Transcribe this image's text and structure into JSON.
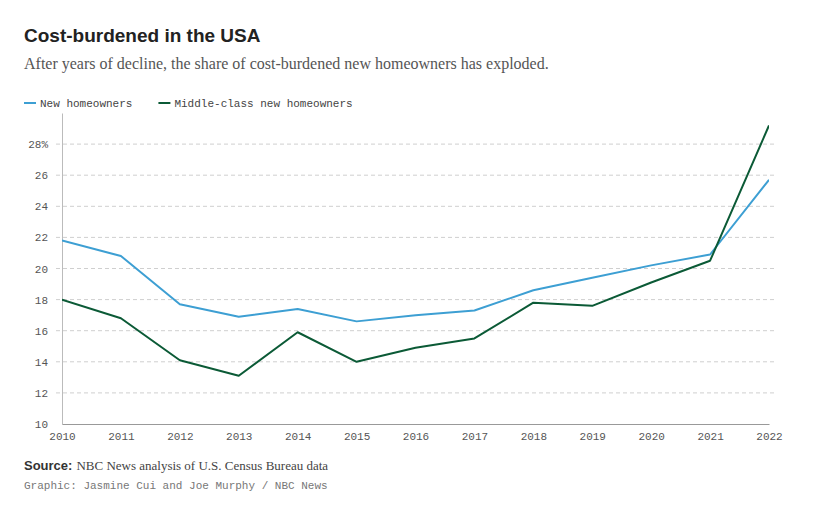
{
  "chart_data": {
    "type": "line",
    "title": "Cost-burdened in the USA",
    "subtitle": "After years of decline, the share of cost-burdened new homeowners has exploded.",
    "x": [
      2010,
      2011,
      2012,
      2013,
      2014,
      2015,
      2016,
      2017,
      2018,
      2019,
      2020,
      2021,
      2022
    ],
    "series": [
      {
        "name": "New homeowners",
        "color": "#3d9fd3",
        "values": [
          21.8,
          20.8,
          17.7,
          16.9,
          17.4,
          16.6,
          17.0,
          17.3,
          18.6,
          19.4,
          20.2,
          20.9,
          25.7
        ]
      },
      {
        "name": "Middle-class new homeowners",
        "color": "#0b5a36",
        "values": [
          18.0,
          16.8,
          14.1,
          13.1,
          15.9,
          14.0,
          14.9,
          15.5,
          17.8,
          17.6,
          19.1,
          20.5,
          29.2
        ]
      }
    ],
    "xlim": [
      2010,
      2022
    ],
    "xticks": [
      2010,
      2011,
      2012,
      2013,
      2014,
      2015,
      2016,
      2017,
      2018,
      2019,
      2020,
      2021,
      2022
    ],
    "ylim": [
      10,
      30
    ],
    "yticks": [
      10,
      12,
      14,
      16,
      18,
      20,
      22,
      24,
      26,
      {
        "value": 28,
        "label": "28%"
      }
    ],
    "grid": true,
    "legend": "top-left",
    "source_label": "Source:",
    "source": "NBC News analysis of U.S. Census Bureau data",
    "credit": "Graphic: Jasmine Cui and Joe Murphy / NBC News"
  }
}
